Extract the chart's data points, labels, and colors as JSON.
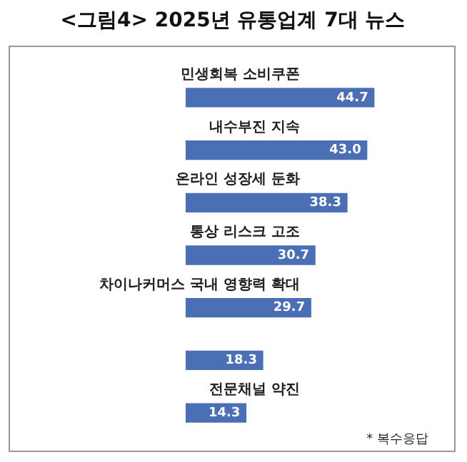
{
  "chart_data": {
    "type": "bar",
    "orientation": "horizontal",
    "title": "<그림4> 2025년 유통업계 7대 뉴스",
    "categories": [
      "민생회복 소비쿠폰",
      "내수부진 지속",
      "온라인 성장세 둔화",
      "통상 리스크 고조",
      "차이나커머스 국내 영향력 확대",
      null,
      "전문채널 약진"
    ],
    "values": [
      44.7,
      43.0,
      38.3,
      30.7,
      29.7,
      18.3,
      14.3
    ],
    "value_labels": [
      "44.7",
      "43.0",
      "38.3",
      "30.7",
      "29.7",
      "18.3",
      "14.3"
    ],
    "color": "#4a6fb5",
    "tick_labels": false,
    "annotations": [
      "* 복수응답"
    ]
  }
}
